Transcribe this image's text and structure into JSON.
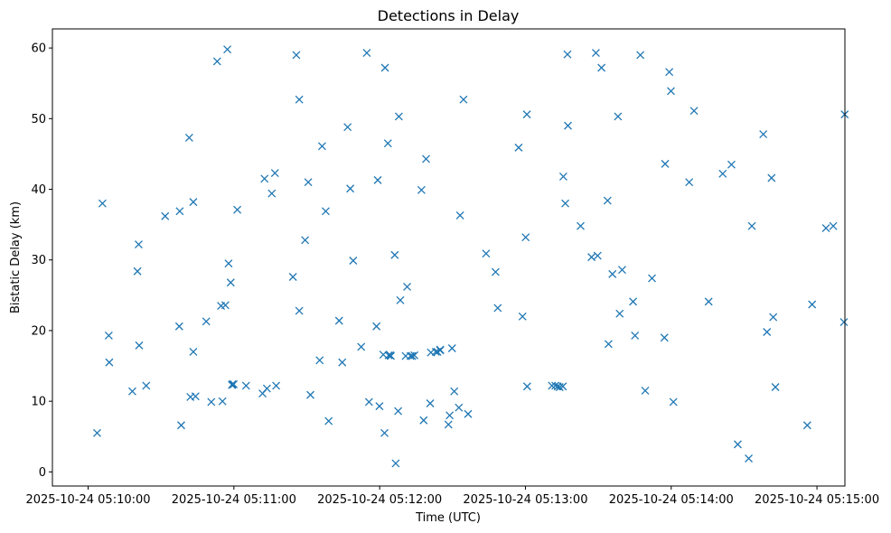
{
  "chart_data": {
    "type": "scatter",
    "title": "Detections in Delay",
    "xlabel": "Time (UTC)",
    "ylabel": "Bistatic Delay (km)",
    "marker": "x",
    "color": "#1f77b4",
    "grid": false,
    "x_ticks": [
      "2025-10-24 05:10:00",
      "2025-10-24 05:11:00",
      "2025-10-24 05:12:00",
      "2025-10-24 05:13:00",
      "2025-10-24 05:14:00",
      "2025-10-24 05:15:00"
    ],
    "x_tick_values": [
      0,
      60,
      120,
      180,
      240,
      300
    ],
    "y_ticks": [
      0,
      10,
      20,
      30,
      40,
      50,
      60
    ],
    "ylim": [
      -2,
      62.7
    ],
    "xlim": [
      -14.7,
      311.5
    ],
    "x_unit": "seconds after 2025-10-24 05:10:00",
    "x": [
      3.7,
      5.9,
      8.5,
      8.7,
      18.2,
      20.3,
      20.8,
      21.0,
      23.9,
      31.7,
      37.5,
      37.7,
      38.3,
      41.6,
      42.1,
      43.3,
      43.3,
      44.2,
      48.6,
      50.7,
      53.1,
      54.7,
      55.3,
      56.5,
      57.3,
      57.8,
      58.7,
      59.2,
      59.4,
      59.9,
      61.4,
      65.0,
      71.8,
      72.6,
      73.6,
      75.6,
      76.9,
      77.4,
      84.3,
      85.7,
      86.9,
      86.9,
      89.3,
      90.6,
      91.5,
      95.3,
      96.3,
      97.8,
      99.0,
      103.3,
      104.6,
      106.8,
      107.9,
      109.1,
      112.4,
      114.7,
      115.6,
      118.7,
      119.2,
      119.9,
      121.5,
      122.0,
      122.2,
      123.4,
      123.7,
      124.4,
      124.6,
      126.2,
      126.6,
      127.6,
      127.9,
      128.5,
      130.7,
      131.3,
      132.7,
      133.4,
      134.3,
      137.2,
      138.1,
      139.1,
      140.8,
      141.1,
      143.1,
      143.8,
      144.9,
      144.9,
      148.3,
      148.8,
      149.8,
      150.7,
      152.6,
      153.1,
      154.5,
      156.4,
      163.8,
      167.7,
      168.6,
      177.2,
      178.8,
      180.1,
      180.6,
      180.7,
      190.9,
      192.3,
      193.3,
      194.1,
      195.4,
      195.6,
      196.4,
      197.3,
      197.5,
      202.7,
      207.2,
      209.0,
      209.7,
      211.3,
      213.8,
      214.2,
      215.8,
      218.1,
      218.8,
      219.8,
      224.3,
      225.1,
      227.3,
      229.3,
      232.1,
      237.2,
      237.5,
      239.2,
      239.9,
      240.9,
      247.4,
      249.4,
      255.4,
      261.2,
      264.8,
      267.4,
      271.9,
      273.2,
      277.9,
      279.4,
      281.3,
      282.0,
      282.9,
      296.0,
      298.0,
      303.7,
      306.7,
      311.1,
      311.4
    ],
    "y": [
      5.5,
      38.0,
      19.3,
      15.5,
      11.4,
      28.4,
      32.2,
      17.9,
      12.2,
      36.2,
      20.6,
      36.9,
      6.6,
      47.3,
      10.6,
      17.0,
      38.2,
      10.7,
      21.3,
      9.9,
      58.1,
      23.5,
      10.0,
      23.6,
      59.8,
      29.5,
      26.8,
      12.3,
      12.4,
      12.4,
      37.1,
      12.2,
      11.1,
      41.5,
      11.8,
      39.4,
      42.3,
      12.2,
      27.6,
      59.0,
      52.7,
      22.8,
      32.8,
      41.0,
      10.9,
      15.8,
      46.1,
      36.9,
      7.2,
      21.4,
      15.5,
      48.8,
      40.1,
      29.9,
      17.7,
      59.3,
      9.9,
      20.6,
      41.3,
      9.3,
      16.6,
      5.5,
      57.2,
      46.5,
      16.5,
      16.5,
      16.4,
      30.7,
      1.2,
      8.6,
      50.3,
      24.3,
      16.4,
      26.2,
      16.4,
      16.4,
      16.5,
      39.9,
      7.3,
      44.3,
      9.7,
      16.9,
      17.0,
      17.0,
      17.3,
      17.2,
      6.7,
      8.0,
      17.5,
      11.4,
      9.1,
      36.3,
      52.7,
      8.2,
      30.9,
      28.3,
      23.2,
      45.9,
      22.0,
      33.2,
      50.6,
      12.1,
      12.2,
      12.2,
      12.1,
      12.0,
      12.1,
      41.8,
      38.0,
      59.1,
      49.0,
      34.8,
      30.4,
      59.3,
      30.6,
      57.2,
      38.4,
      18.1,
      28.0,
      50.3,
      22.4,
      28.6,
      24.1,
      19.3,
      59.0,
      11.5,
      27.4,
      19.0,
      43.6,
      56.6,
      53.9,
      9.9,
      41.0,
      51.1,
      24.1,
      42.2,
      43.5,
      3.9,
      1.9,
      34.8,
      47.8,
      19.8,
      41.6,
      21.9,
      12.0,
      6.6,
      23.7,
      34.5,
      34.8,
      21.2,
      50.6
    ]
  }
}
